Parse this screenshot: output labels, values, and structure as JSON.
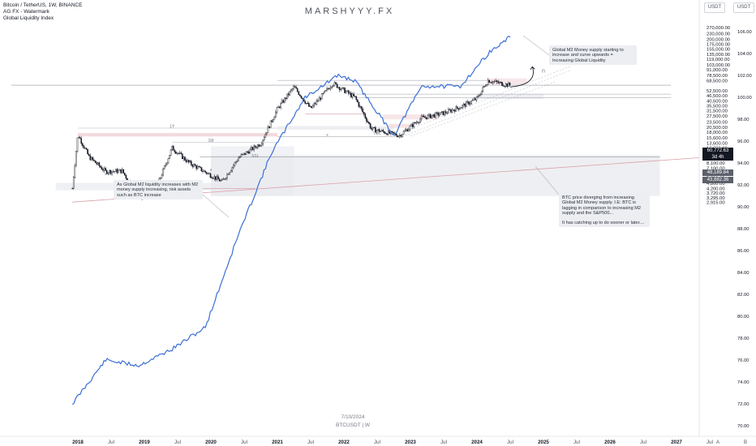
{
  "header": {
    "symbol_line": "Bitcoin / TetherUS, 1W, BINANCE",
    "indicator_1": "AG FX - Watermark",
    "indicator_2": "Global Liquidity Index"
  },
  "watermark": "MARSHYYY.FX",
  "axis_units": {
    "left": "USDT",
    "right": "USDT"
  },
  "notes": {
    "m2": "Global M2 Money supply starting to increase and curve upwards = Increasing Global Liquidity",
    "liquidity": "As Global M2 liquidity increases with M2 money supply increasing, risk assets such as BTC increase",
    "diverge_1": "BTC price diverging from increasing Global M2 Money supply. I.E: BTC is lagging in comparison to increasing M2 supply and the S&P500...",
    "diverge_2": "It has catching up to do sooner or later...."
  },
  "footer": {
    "date": "7/10/2024",
    "ticker": "BTCUSDT | W"
  },
  "price_tags": {
    "last": "60,772.63",
    "countdown": "3d 4h",
    "level_1": "48,189.84",
    "level_2": "43,882.36"
  },
  "chart_labels": {
    "oneY": "1Y",
    "oneM": "1M",
    "x1": "x",
    "x2": "x",
    "x3": "x",
    "ssl1": "SSL",
    "ssl2": "SSL",
    "n": "n",
    "a": "A",
    "b": "B"
  },
  "colors": {
    "candle": "#131722",
    "m2_line": "#3b6fd6",
    "trendline": "#d9a0a8",
    "zone_gray": "#e8eaee",
    "zone_red": "#f2d6d8",
    "tag_dark": "#131722",
    "tag_gray": "#5d606b"
  },
  "chart_data": {
    "type": "candlestick",
    "symbol": "Bitcoin / TetherUS",
    "timeframe": "1W",
    "exchange": "BINANCE",
    "y_scale": "log",
    "x_ticks": [
      "2018",
      "Jul",
      "2019",
      "Jul",
      "2020",
      "Jul",
      "2021",
      "Jul",
      "2022",
      "Jul",
      "2023",
      "Jul",
      "2024",
      "Jul",
      "2025",
      "Jul",
      "2026",
      "Jul",
      "2027",
      "Jul"
    ],
    "left_ticks": [
      "270,000.00",
      "230,000.00",
      "200,000.00",
      "175,000.00",
      "155,000.00",
      "135,000.00",
      "119,000.00",
      "103,000.00",
      "91,000.00",
      "78,500.00",
      "68,500.00",
      "52,500.00",
      "46,500.00",
      "40,500.00",
      "35,500.00",
      "31,500.00",
      "27,500.00",
      "23,500.00",
      "20,500.00",
      "18,000.00",
      "15,600.00",
      "13,600.00",
      "12,000.00",
      "10,500.00",
      "9,300.00",
      "8,100.00",
      "7,100.00",
      "6,300.00",
      "5,500.00",
      "4,800.00",
      "4,200.00",
      "3,720.00",
      "3,295.00",
      "2,915.00"
    ],
    "right_ticks": [
      "106.00",
      "104.00",
      "102.00",
      "100.00",
      "98.00",
      "96.00",
      "94.00",
      "92.00",
      "90.00",
      "88.00",
      "86.00",
      "84.00",
      "82.00",
      "80.00",
      "78.00",
      "76.00",
      "74.00",
      "72.00",
      "70.00"
    ],
    "btc_price_approx": [
      {
        "t": "2017-12",
        "p": 4200
      },
      {
        "t": "2018-01",
        "p": 17000
      },
      {
        "t": "2018-03",
        "p": 9500
      },
      {
        "t": "2018-06",
        "p": 6500
      },
      {
        "t": "2018-09",
        "p": 6600
      },
      {
        "t": "2018-12",
        "p": 3300
      },
      {
        "t": "2019-03",
        "p": 4000
      },
      {
        "t": "2019-06",
        "p": 12000
      },
      {
        "t": "2019-09",
        "p": 8200
      },
      {
        "t": "2020-03",
        "p": 5000
      },
      {
        "t": "2020-06",
        "p": 9300
      },
      {
        "t": "2020-10",
        "p": 13500
      },
      {
        "t": "2021-01",
        "p": 33000
      },
      {
        "t": "2021-04",
        "p": 58000
      },
      {
        "t": "2021-07",
        "p": 33000
      },
      {
        "t": "2021-11",
        "p": 64000
      },
      {
        "t": "2022-03",
        "p": 44000
      },
      {
        "t": "2022-06",
        "p": 19500
      },
      {
        "t": "2022-11",
        "p": 16500
      },
      {
        "t": "2023-03",
        "p": 26000
      },
      {
        "t": "2023-07",
        "p": 29500
      },
      {
        "t": "2023-10",
        "p": 34500
      },
      {
        "t": "2024-01",
        "p": 43000
      },
      {
        "t": "2024-03",
        "p": 69000
      },
      {
        "t": "2024-06",
        "p": 62000
      },
      {
        "t": "2024-07",
        "p": 60772.63
      }
    ],
    "m2_index_approx": [
      {
        "t": "2017-12",
        "p": 72.0
      },
      {
        "t": "2018-06",
        "p": 76.0
      },
      {
        "t": "2018-12",
        "p": 75.5
      },
      {
        "t": "2019-06",
        "p": 77.0
      },
      {
        "t": "2019-12",
        "p": 79.0
      },
      {
        "t": "2020-06",
        "p": 87.5
      },
      {
        "t": "2020-12",
        "p": 95.0
      },
      {
        "t": "2021-06",
        "p": 100.0
      },
      {
        "t": "2021-12",
        "p": 102.0
      },
      {
        "t": "2022-03",
        "p": 101.5
      },
      {
        "t": "2022-10",
        "p": 96.5
      },
      {
        "t": "2023-03",
        "p": 101.0
      },
      {
        "t": "2023-10",
        "p": 101.0
      },
      {
        "t": "2024-03",
        "p": 104.0
      },
      {
        "t": "2024-07",
        "p": 105.5
      }
    ]
  }
}
